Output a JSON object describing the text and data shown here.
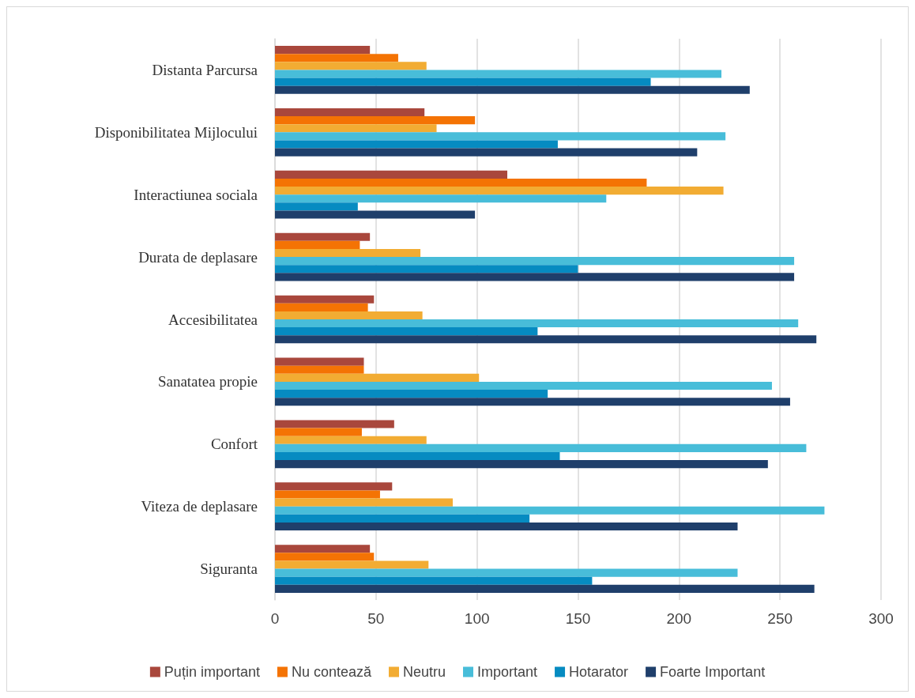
{
  "chart_data": {
    "type": "bar",
    "orientation": "horizontal",
    "categories": [
      "Distanta Parcursa",
      "Disponibilitatea Mijlocului",
      "Interactiunea sociala",
      "Durata de deplasare",
      "Accesibilitatea",
      "Sanatatea propie",
      "Confort",
      "Viteza de deplasare",
      "Siguranta"
    ],
    "series": [
      {
        "name": "Puțin important",
        "color": "#a9473c",
        "values": [
          47,
          74,
          115,
          47,
          49,
          44,
          59,
          58,
          47
        ]
      },
      {
        "name": "Nu contează",
        "color": "#f47304",
        "values": [
          61,
          99,
          184,
          42,
          46,
          44,
          43,
          52,
          49
        ]
      },
      {
        "name": "Neutru",
        "color": "#f2ac33",
        "values": [
          75,
          80,
          222,
          72,
          73,
          101,
          75,
          88,
          76
        ]
      },
      {
        "name": "Important",
        "color": "#48bdd9",
        "values": [
          221,
          223,
          164,
          257,
          259,
          246,
          263,
          272,
          229
        ]
      },
      {
        "name": "Hotarator",
        "color": "#068bc1",
        "values": [
          186,
          140,
          41,
          150,
          130,
          135,
          141,
          126,
          157
        ]
      },
      {
        "name": "Foarte Important",
        "color": "#1f3f6b",
        "values": [
          235,
          209,
          99,
          257,
          268,
          255,
          244,
          229,
          267
        ]
      }
    ],
    "xlim": [
      0,
      300
    ],
    "xticks": [
      0,
      50,
      100,
      150,
      200,
      250,
      300
    ],
    "grid": "x",
    "legend": "bottom"
  }
}
